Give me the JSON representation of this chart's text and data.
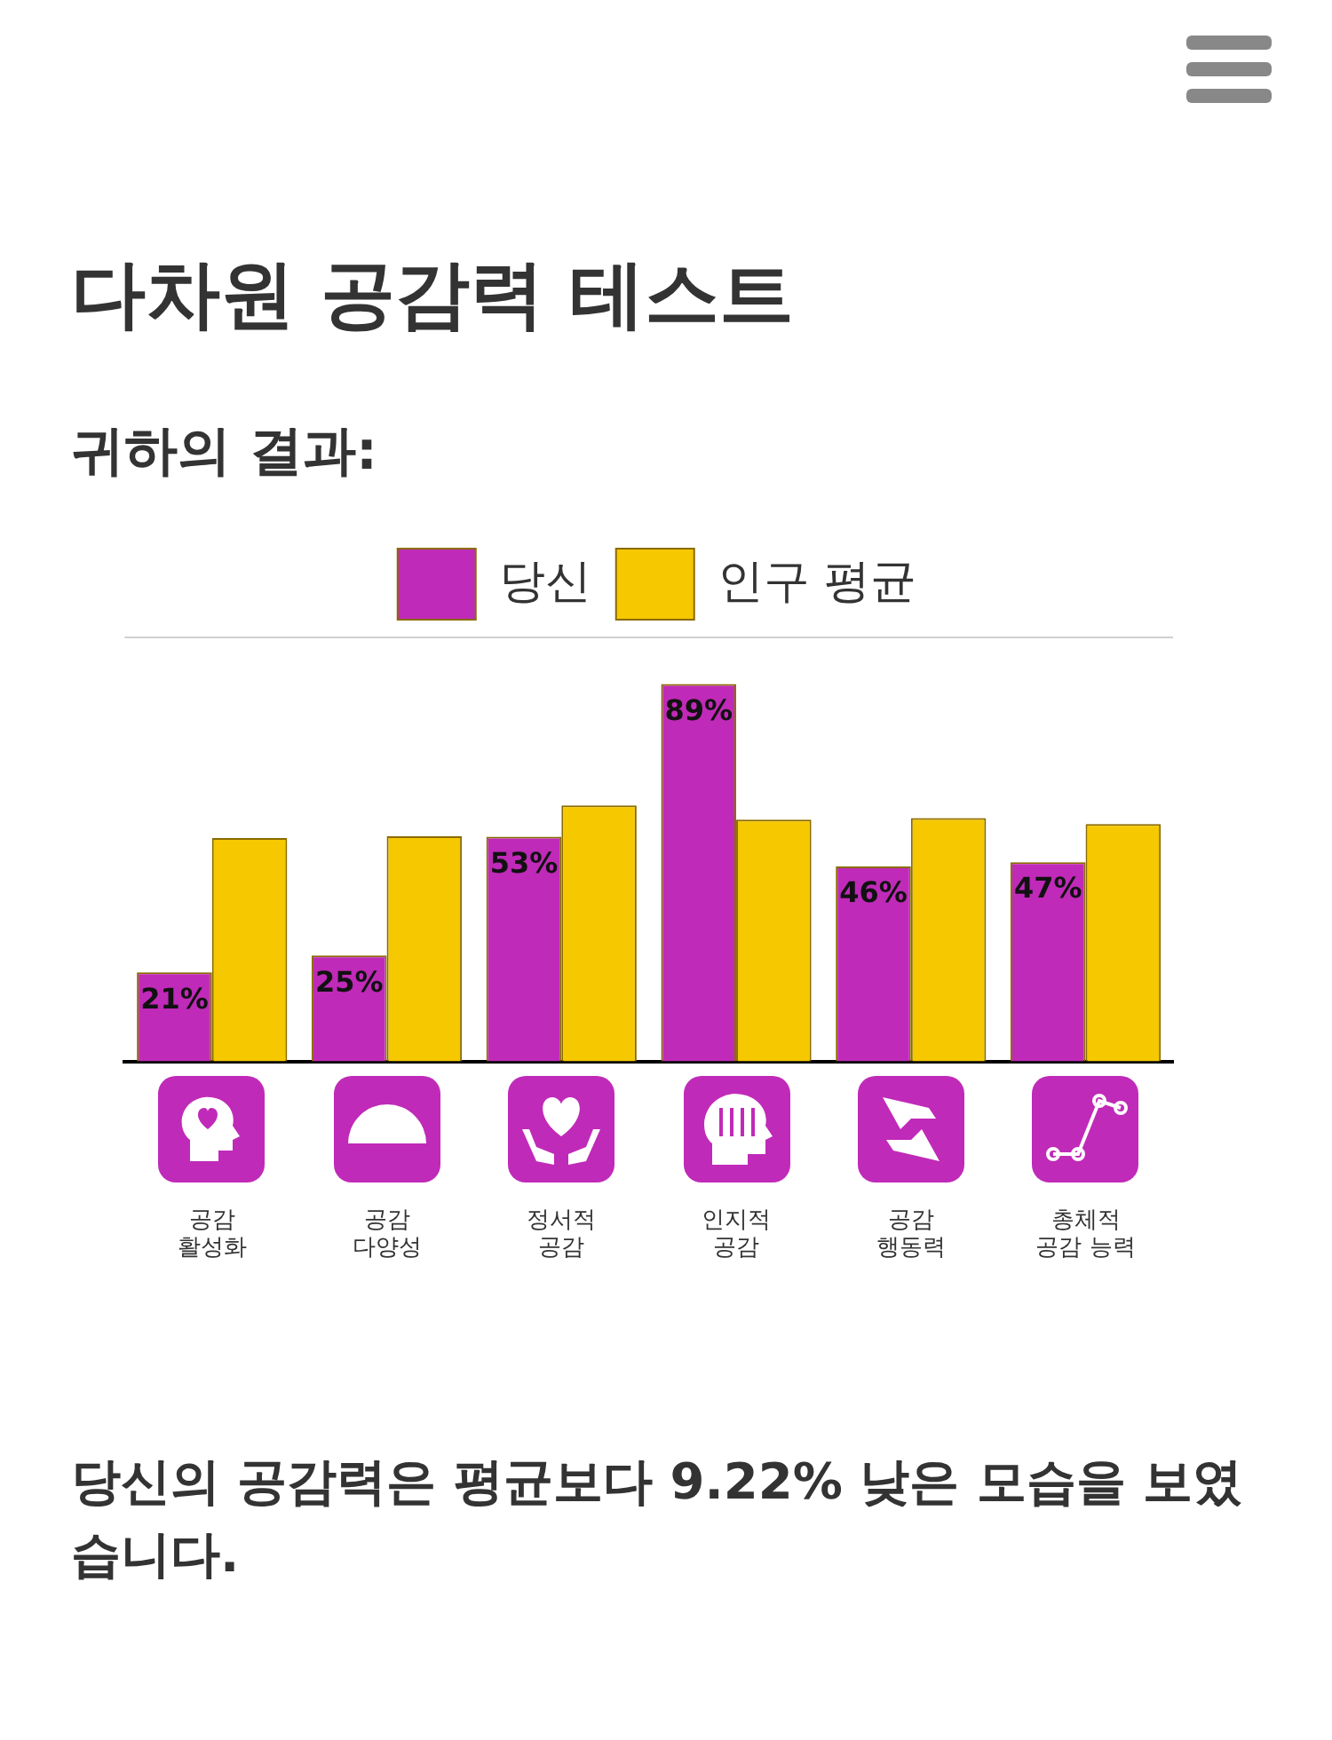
{
  "chart_data": {
    "type": "bar",
    "title": "다차원 공감력 테스트",
    "subtitle": "귀하의 결과:",
    "categories": [
      "공감 활성화",
      "공감 다양성",
      "정서적 공감",
      "인지적 공감",
      "공감 행동력",
      "총체적 공감 능력"
    ],
    "series": [
      {
        "name": "당신",
        "color": "#c02ab8",
        "values": [
          21,
          25,
          53,
          89,
          46,
          47
        ],
        "value_labels": [
          "21%",
          "25%",
          "53%",
          "89%",
          "46%",
          "47%"
        ]
      },
      {
        "name": "인구 평균",
        "color": "#f5c800",
        "values": [
          52.7,
          53.1,
          60.4,
          57.0,
          57.4,
          56.0
        ]
      }
    ],
    "ylim": [
      0,
      100
    ],
    "tick_labels": "x",
    "legend": "top",
    "annotations": [
      "당신의 공감력은 평균보다 9.22% 낮은 모습을 보였습니다."
    ]
  }
}
